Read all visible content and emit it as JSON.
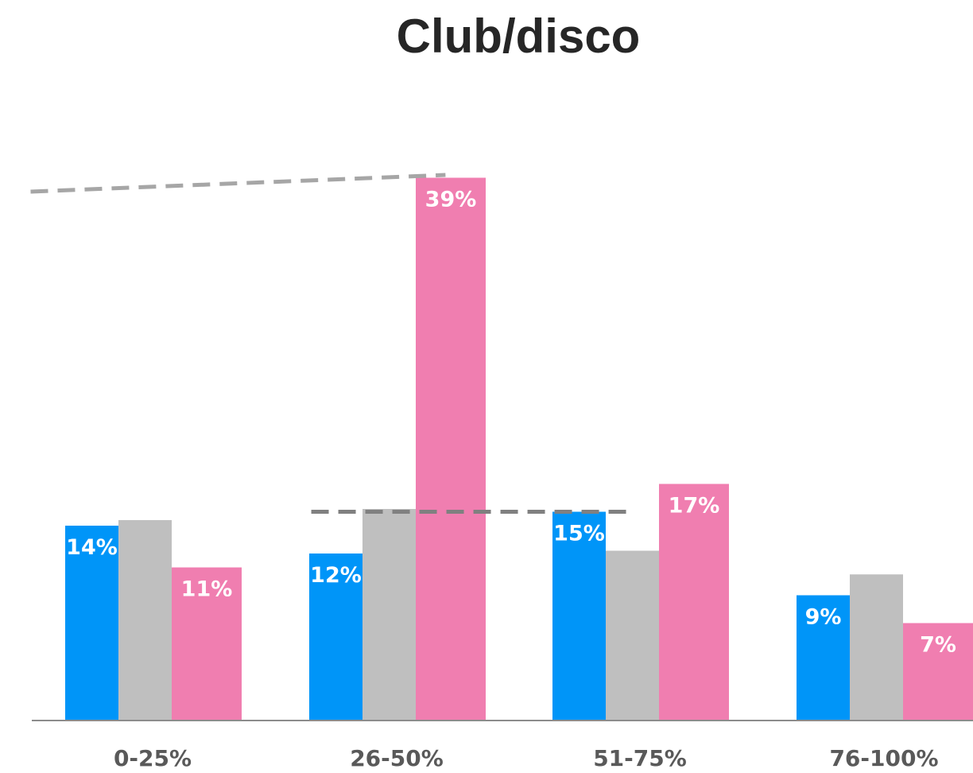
{
  "chart_data": {
    "type": "bar",
    "title": "Club/disco",
    "xlabel": "",
    "ylabel": "",
    "ylim": [
      0,
      40
    ],
    "categories": [
      "0-25%",
      "26-50%",
      "51-75%",
      "76-100%"
    ],
    "series": [
      {
        "color": "#0095f8",
        "values": [
          14,
          12,
          15,
          9
        ],
        "labels": [
          "14%",
          "12%",
          "15%",
          "9%"
        ]
      },
      {
        "color": "#bfbfbf",
        "values": [
          14.4,
          15.2,
          12.2,
          10.5
        ],
        "labels": [
          "",
          "",
          "",
          ""
        ]
      },
      {
        "color": "#f07eb0",
        "values": [
          11,
          39,
          17,
          7
        ],
        "labels": [
          "11%",
          "39%",
          "17%",
          "7%"
        ]
      }
    ],
    "reference_lines": [
      {
        "style": "dashed",
        "color": "#a6a6a6",
        "from": {
          "category": -0.5,
          "value": 38
        },
        "to": {
          "category": 1.2,
          "value": 39.2
        }
      },
      {
        "style": "dashed",
        "color": "#808080",
        "from": {
          "category": 0.65,
          "value": 15
        },
        "to": {
          "category": 1.95,
          "value": 15
        }
      }
    ],
    "grid": false,
    "legend": "none"
  }
}
